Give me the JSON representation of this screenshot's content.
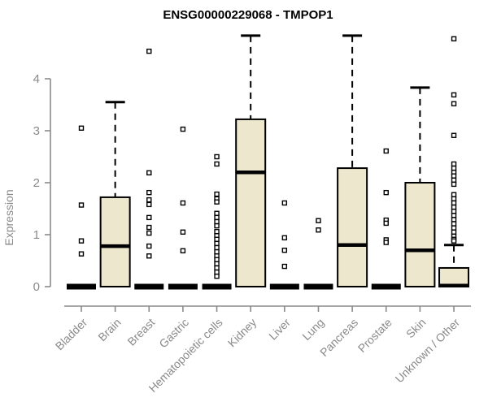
{
  "figure": {
    "title": "ENSG00000229068 - TMPOP1"
  },
  "chart_data": {
    "type": "box",
    "title": "ENSG00000229068 - TMPOP1",
    "xlabel": "",
    "ylabel": "Expression",
    "ylim": [
      0,
      4.9
    ],
    "yticks": [
      0,
      1,
      2,
      3,
      4
    ],
    "grid": false,
    "legend": false,
    "colors": {
      "box_fill": "#EDE8CD",
      "box_stroke": "#000000",
      "median": "#000000",
      "whisker": "#000000",
      "outlier": "#000000",
      "axis": "#8A8A8A",
      "tick_label": "#8A8A8A",
      "title": "#000000",
      "background": "#FFFFFF"
    },
    "categories": [
      "Bladder",
      "Brain",
      "Breast",
      "Gastric",
      "Hematopoietic cells",
      "Kidney",
      "Liver",
      "Lung",
      "Pancreas",
      "Prostate",
      "Skin",
      "Unknown / Other"
    ],
    "series": [
      {
        "label": "Bladder",
        "q1": 0,
        "median": 0,
        "q3": 0,
        "whisker_low": 0,
        "whisker_high": 0,
        "outliers": [
          3.05,
          1.57,
          0.88,
          0.63
        ]
      },
      {
        "label": "Brain",
        "q1": 0,
        "median": 0.78,
        "q3": 1.72,
        "whisker_low": 0,
        "whisker_high": 3.55,
        "outliers": []
      },
      {
        "label": "Breast",
        "q1": 0,
        "median": 0,
        "q3": 0,
        "whisker_low": 0,
        "whisker_high": 0,
        "outliers": [
          4.53,
          2.19,
          1.81,
          1.67,
          1.58,
          1.33,
          1.14,
          1.03,
          0.78,
          0.59
        ]
      },
      {
        "label": "Gastric",
        "q1": 0,
        "median": 0,
        "q3": 0,
        "whisker_low": 0,
        "whisker_high": 0,
        "outliers": [
          3.03,
          1.61,
          1.05,
          0.69
        ]
      },
      {
        "label": "Hematopoietic cells",
        "q1": 0,
        "median": 0,
        "q3": 0,
        "whisker_low": 0,
        "whisker_high": 0,
        "outliers": [
          2.5,
          2.36,
          1.78,
          1.69,
          1.63,
          1.41,
          1.33,
          1.25,
          1.17,
          1.06,
          0.98,
          0.91,
          0.83,
          0.75,
          0.67,
          0.59,
          0.52,
          0.44,
          0.36,
          0.28,
          0.2
        ]
      },
      {
        "label": "Kidney",
        "q1": 0,
        "median": 2.2,
        "q3": 3.22,
        "whisker_low": 0,
        "whisker_high": 4.83,
        "outliers": []
      },
      {
        "label": "Liver",
        "q1": 0,
        "median": 0,
        "q3": 0,
        "whisker_low": 0,
        "whisker_high": 0,
        "outliers": [
          1.61,
          0.94,
          0.7,
          0.39
        ]
      },
      {
        "label": "Lung",
        "q1": 0,
        "median": 0,
        "q3": 0,
        "whisker_low": 0,
        "whisker_high": 0,
        "outliers": [
          1.27,
          1.09
        ]
      },
      {
        "label": "Pancreas",
        "q1": 0,
        "median": 0.8,
        "q3": 2.28,
        "whisker_low": 0,
        "whisker_high": 4.83,
        "outliers": []
      },
      {
        "label": "Prostate",
        "q1": 0,
        "median": 0,
        "q3": 0,
        "whisker_low": 0,
        "whisker_high": 0,
        "outliers": [
          2.61,
          1.81,
          1.28,
          1.22,
          0.9,
          0.85
        ]
      },
      {
        "label": "Skin",
        "q1": 0,
        "median": 0.7,
        "q3": 2.0,
        "whisker_low": 0,
        "whisker_high": 3.83,
        "outliers": []
      },
      {
        "label": "Unknown / Other",
        "q1": 0,
        "median": 0.02,
        "q3": 0.36,
        "whisker_low": 0,
        "whisker_high": 0.8,
        "outliers": [
          4.77,
          3.69,
          3.52,
          2.91,
          2.36,
          2.28,
          2.2,
          2.13,
          2.05,
          1.97,
          1.77,
          1.69,
          1.61,
          1.53,
          1.45,
          1.37,
          1.29,
          1.21,
          1.13,
          1.05,
          0.97,
          0.91,
          0.88
        ]
      }
    ]
  }
}
